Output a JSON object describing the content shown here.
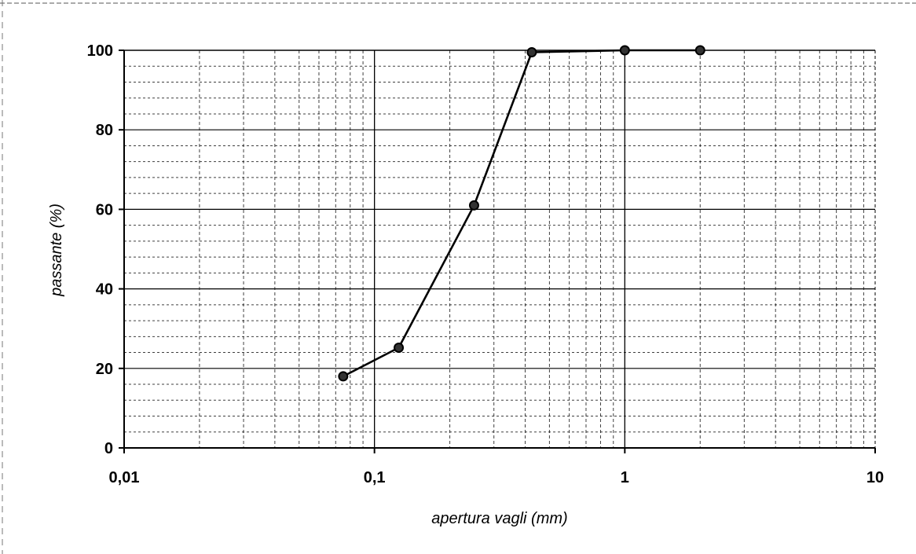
{
  "chart_data": {
    "type": "line",
    "title": "",
    "xlabel": "apertura vagli (mm)",
    "ylabel": "passante (%)",
    "x_scale": "log",
    "xlim": [
      0.01,
      10
    ],
    "ylim": [
      0,
      100
    ],
    "x_ticks": [
      {
        "value": 0.01,
        "label": "0,01"
      },
      {
        "value": 0.1,
        "label": "0,1"
      },
      {
        "value": 1,
        "label": "1"
      },
      {
        "value": 10,
        "label": "10"
      }
    ],
    "y_ticks": [
      {
        "value": 0,
        "label": "0"
      },
      {
        "value": 20,
        "label": "20"
      },
      {
        "value": 40,
        "label": "40"
      },
      {
        "value": 60,
        "label": "60"
      },
      {
        "value": 80,
        "label": "80"
      },
      {
        "value": 100,
        "label": "100"
      }
    ],
    "grid": true,
    "legend": "none",
    "series": [
      {
        "x": [
          0.075,
          0.125,
          0.25,
          0.425,
          1,
          2
        ],
        "y": [
          18,
          25.2,
          61,
          99.5,
          100,
          100
        ]
      }
    ],
    "colors": {
      "line": "#000000",
      "grid": "#000000",
      "marker_fill": "#333333"
    }
  }
}
